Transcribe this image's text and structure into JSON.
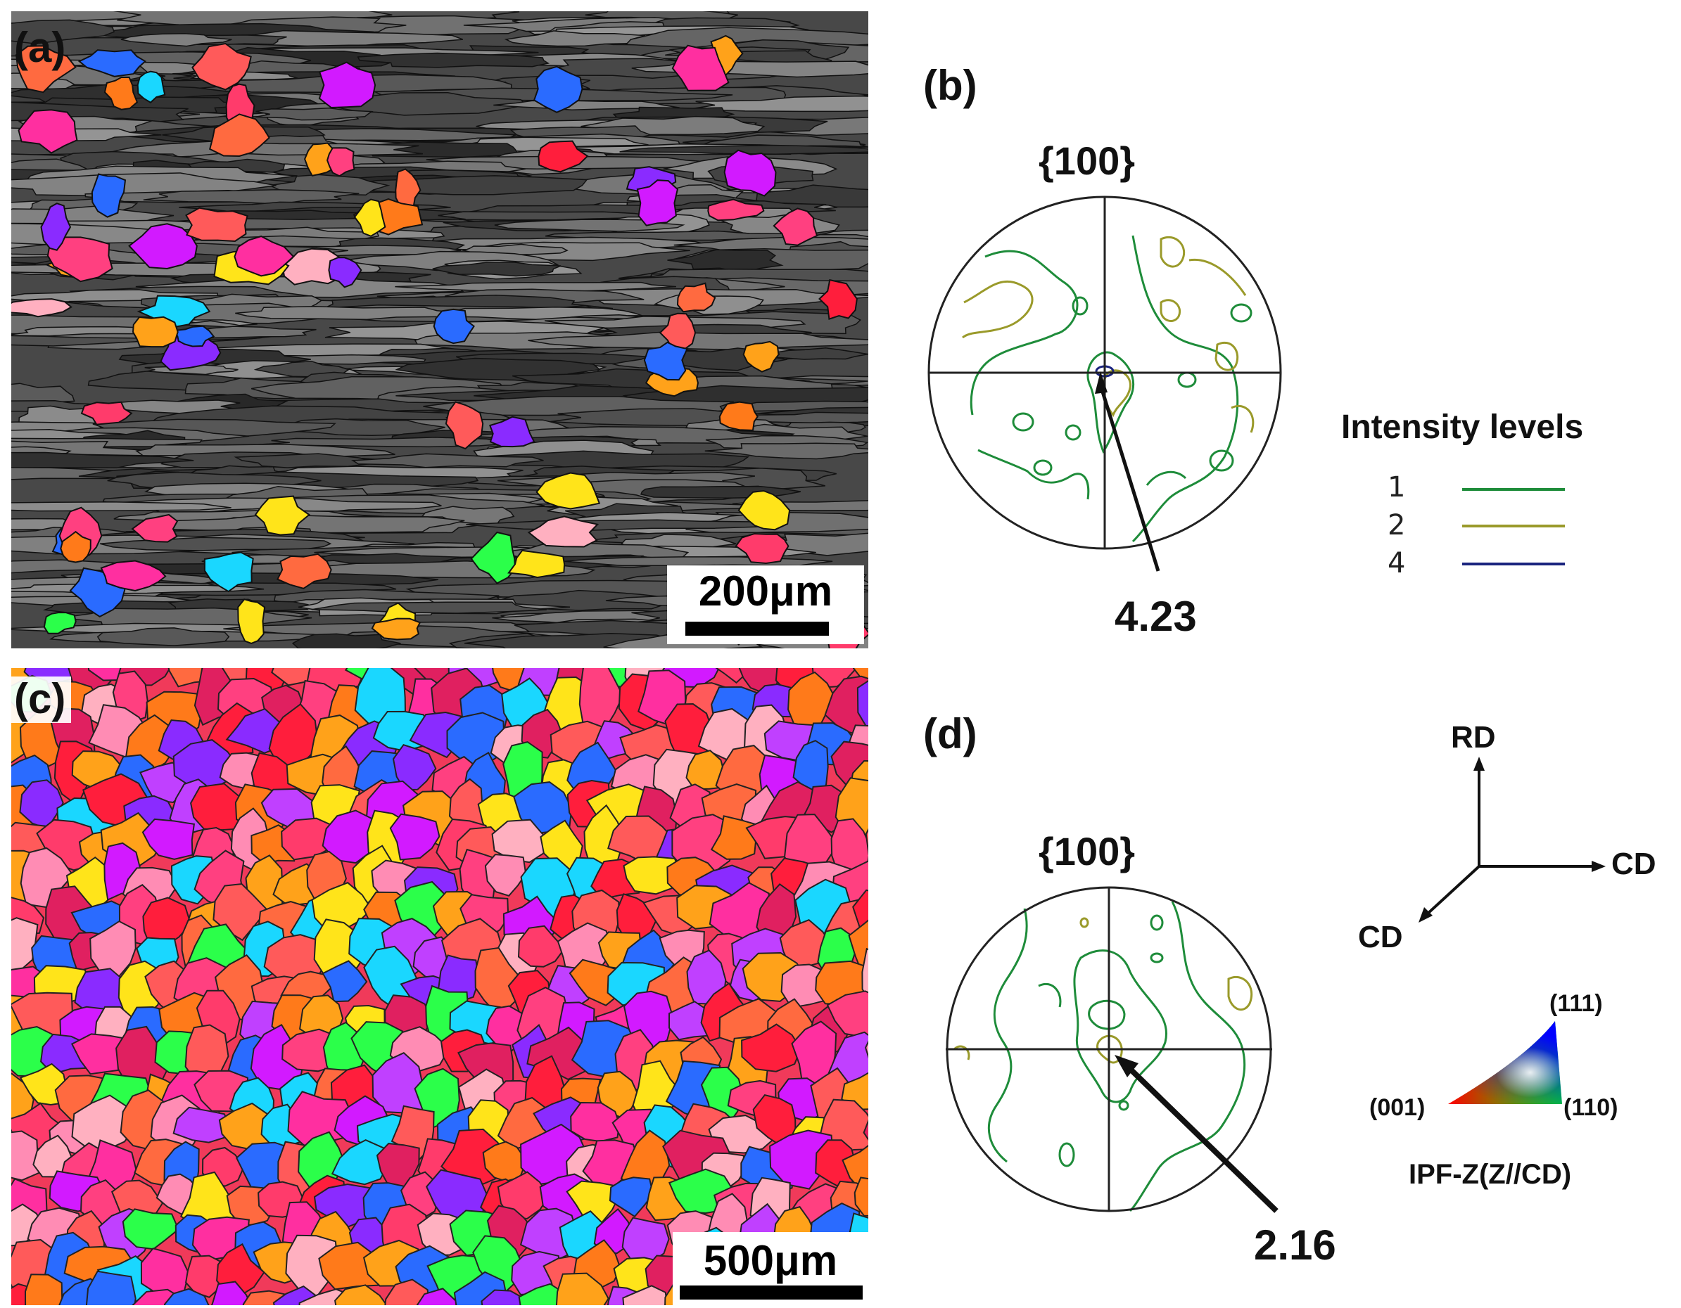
{
  "panels": {
    "a": {
      "label": "(a)",
      "scalebar": "200μm",
      "colors": {
        "matrix": "#4a4a4a",
        "boundary": "#111111"
      }
    },
    "b": {
      "label": "(b)",
      "pole_figure_title": "{100}",
      "max_intensity": "4.23"
    },
    "c": {
      "label": "(c)",
      "scalebar": "500μm",
      "colors": {
        "boundary": "#1a1a1a"
      }
    },
    "d": {
      "label": "(d)",
      "pole_figure_title": "{100}",
      "max_intensity": "2.16"
    }
  },
  "legend": {
    "title": "Intensity levels",
    "levels": [
      {
        "value": "1",
        "color": "#1e8c3a"
      },
      {
        "value": "2",
        "color": "#9a9a2a"
      },
      {
        "value": "4",
        "color": "#1a237e"
      }
    ]
  },
  "axes": {
    "up": "RD",
    "right": "CD",
    "diagonal": "CD"
  },
  "ipf_key": {
    "corner_top": "(111)",
    "corner_left": "(001)",
    "corner_right": "(110)",
    "caption": "IPF-Z(Z//CD)"
  }
}
